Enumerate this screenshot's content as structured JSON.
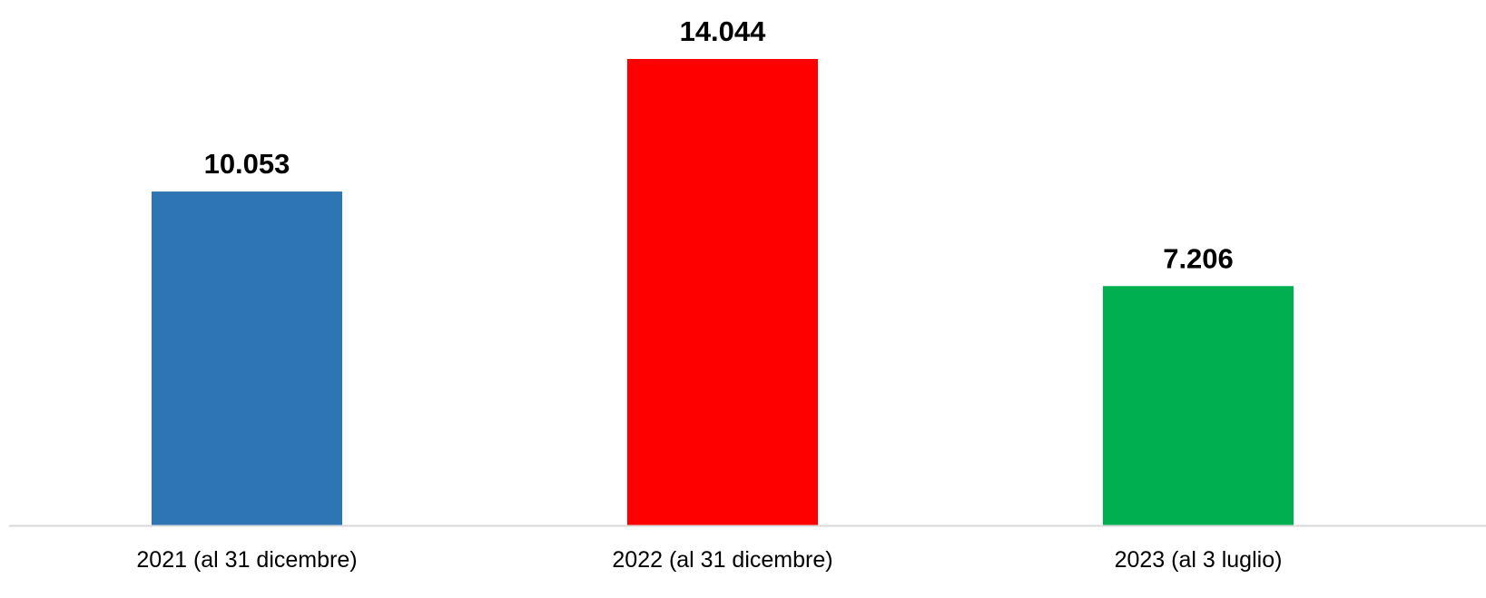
{
  "chart_data": {
    "type": "bar",
    "title": "",
    "xlabel": "",
    "ylabel": "",
    "categories": [
      "2021 (al 31 dicembre)",
      "2022 (al 31 dicembre)",
      "2023 (al 3 luglio)"
    ],
    "values": [
      10053,
      14044,
      7206
    ],
    "value_labels": [
      "10.053",
      "14.044",
      "7.206"
    ],
    "colors": [
      "#2E75B6",
      "#FF0000",
      "#00B050"
    ],
    "ylim": [
      0,
      15000
    ],
    "grid": false,
    "legend": "none",
    "baseline_color": "#D9D9D9"
  }
}
